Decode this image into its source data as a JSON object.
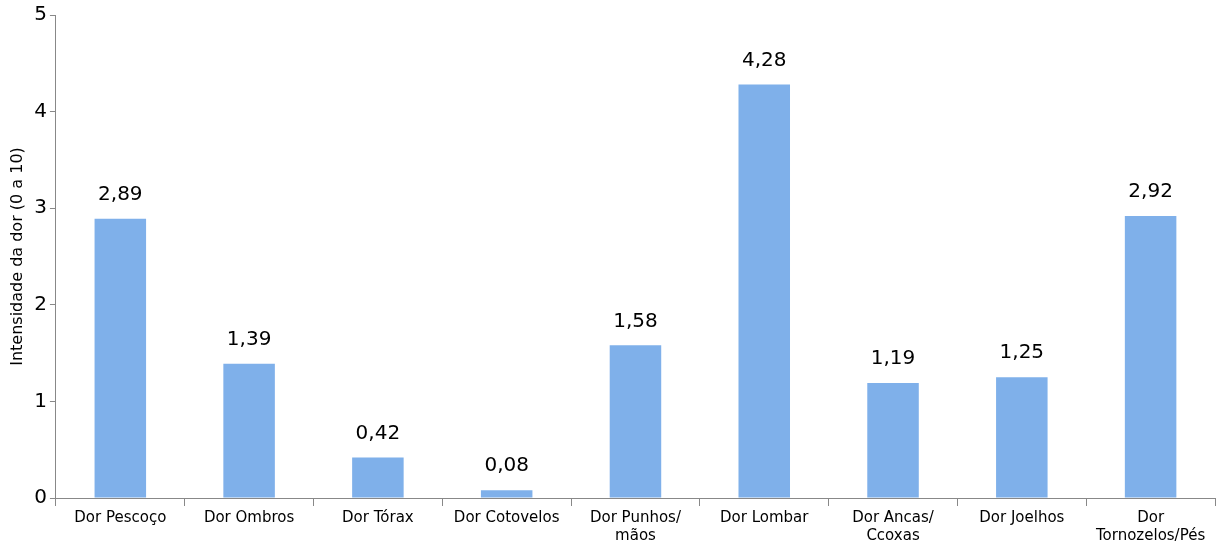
{
  "chart_data": {
    "type": "bar",
    "ylabel": "Intensidade da dor (0 a 10)",
    "categories": [
      "Dor Pescoço",
      "Dor Ombros",
      "Dor Tórax",
      "Dor Cotovelos",
      "Dor Punhos/ mãos",
      "Dor Lombar",
      "Dor Ancas/ Ccoxas",
      "Dor Joelhos",
      "Dor Tornozelos/Pés"
    ],
    "values": [
      2.89,
      1.39,
      0.42,
      0.08,
      1.58,
      4.28,
      1.19,
      1.25,
      2.92
    ],
    "value_labels": [
      "2,89",
      "1,39",
      "0,42",
      "0,08",
      "1,58",
      "4,28",
      "1,19",
      "1,25",
      "2,92"
    ],
    "color": "#7fb0ea",
    "ylim": [
      0,
      5
    ],
    "yticks": [
      0,
      1,
      2,
      3,
      4,
      5
    ],
    "grid": false,
    "legend": false
  }
}
